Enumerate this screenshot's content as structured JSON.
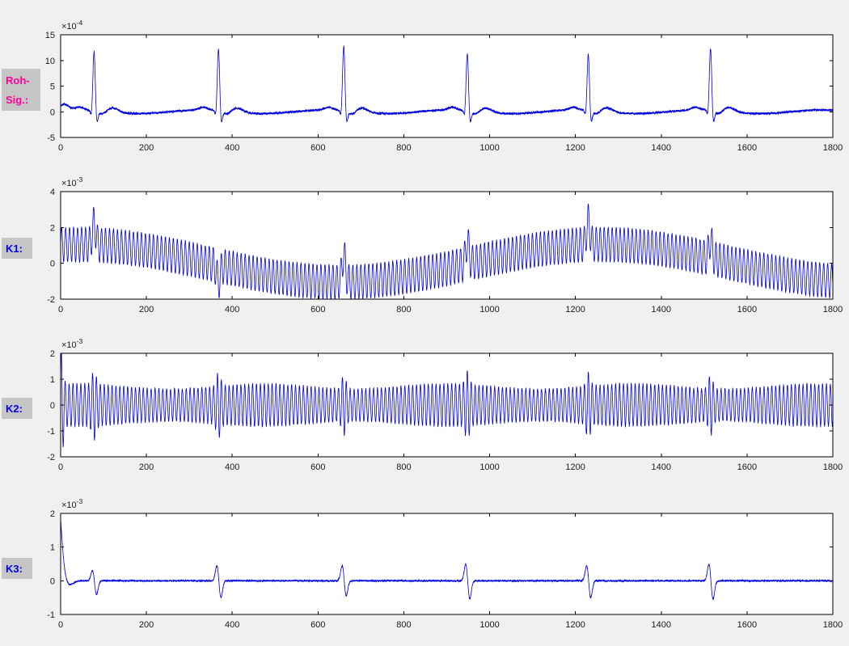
{
  "figure": {
    "bg_color": "#f0f0f0",
    "plot_bg": "#ffffff",
    "axis_color": "#000000",
    "tick_label_color": "#1a1a1a",
    "line_color": "#0000dd",
    "label_box_bg": "#c6c6c6"
  },
  "chart_data": [
    {
      "type": "line",
      "id": "raw-signal",
      "side_label": {
        "lines": [
          "Roh-",
          "Sig.:"
        ],
        "color": "#ff0099"
      },
      "unit_exponent": {
        "base": "×10",
        "power": "-4"
      },
      "xlim": [
        0,
        1800
      ],
      "xticks": [
        0,
        200,
        400,
        600,
        800,
        1000,
        1200,
        1400,
        1600,
        1800
      ],
      "ylim": [
        -5,
        15
      ],
      "yticks": [
        -5,
        0,
        5,
        10,
        15
      ],
      "line_color": "#0000dd",
      "description": "Raw ECG signal (units ×10⁻⁴): noisy baseline near 0 with six sharp R-peaks of height ≈11–13 and S-dips to ≈ −2.5",
      "signal": {
        "kind": "ecg",
        "seed": 7,
        "samples": 7200,
        "noise": 0.22,
        "beats": [
          78,
          368,
          660,
          948,
          1230,
          1515
        ],
        "r_amps": [
          11.8,
          12.2,
          12.8,
          11.4,
          11.2,
          12.3
        ],
        "q_amp": -1.2,
        "s_amp": -2.5,
        "p_amp": 0.55,
        "t_amp": 0.85,
        "dip_amp": -0.7,
        "base_amp": 0.35,
        "base_period": 290,
        "init_amp": 1.2
      }
    },
    {
      "type": "line",
      "id": "k1",
      "side_label": {
        "lines": [
          "K1:"
        ],
        "color": "#0000ee"
      },
      "unit_exponent": {
        "base": "×10",
        "power": "-3"
      },
      "xlim": [
        0,
        1800
      ],
      "xticks": [
        0,
        200,
        400,
        600,
        800,
        1000,
        1200,
        1400,
        1600,
        1800
      ],
      "ylim": [
        -2,
        4
      ],
      "yticks": [
        -2,
        0,
        2,
        4
      ],
      "line_color": "#0000dd",
      "description": "Component K1 (units ×10⁻³): dense high-frequency carrier ≈±0.95 riding on a slow sinusoidal drift (max ≈+1 near x≈1250, min ≈−1 near x≈650) with spikes up to ≈3 at the R-peak positions",
      "signal": {
        "kind": "carrier_drift",
        "seed": 11,
        "samples": 7200,
        "noise": 0.05,
        "carrier_amp": 0.95,
        "carrier_period": 9.3,
        "drift_amp": 1.05,
        "drift_period": 1220,
        "drift_phase": 40,
        "beats": [
          78,
          368,
          660,
          948,
          1230,
          1515
        ],
        "spike_amps": [
          1.2,
          -0.9,
          1.5,
          1.2,
          1.3,
          1.0
        ],
        "spike_width": 4
      }
    },
    {
      "type": "line",
      "id": "k2",
      "side_label": {
        "lines": [
          "K2:"
        ],
        "color": "#0000ee"
      },
      "unit_exponent": {
        "base": "×10",
        "power": "-3"
      },
      "xlim": [
        0,
        1800
      ],
      "xticks": [
        0,
        200,
        400,
        600,
        800,
        1000,
        1200,
        1400,
        1600,
        1800
      ],
      "ylim": [
        -2,
        2
      ],
      "yticks": [
        -2,
        -1,
        0,
        1,
        2
      ],
      "line_color": "#0000dd",
      "description": "Component K2 (units ×10⁻³): stationary high-frequency oscillation ≈±0.8 around 0, initial transient to ≈2 at x≈0 and amplitude bursts to ≈±1.3 at the R-peak positions",
      "signal": {
        "kind": "carrier_bursts",
        "seed": 13,
        "samples": 7200,
        "noise": 0.04,
        "carrier_amp": 0.72,
        "carrier_period": 9.1,
        "mod_amp": 0.1,
        "mod_period": 430,
        "beats": [
          78,
          368,
          660,
          948,
          1230,
          1515
        ],
        "burst_boost": 0.55,
        "burst_width": 5,
        "init_boost": 1.3,
        "init_width": 4
      }
    },
    {
      "type": "line",
      "id": "k3",
      "side_label": {
        "lines": [
          "K3:"
        ],
        "color": "#0000ee"
      },
      "unit_exponent": {
        "base": "×10",
        "power": "-3"
      },
      "xlim": [
        0,
        1800
      ],
      "xticks": [
        0,
        200,
        400,
        600,
        800,
        1000,
        1200,
        1400,
        1600,
        1800
      ],
      "ylim": [
        -1,
        2
      ],
      "yticks": [
        -1,
        0,
        1,
        2
      ],
      "line_color": "#0000dd",
      "description": "Component K3 (units ×10⁻³): near-zero residual with initial transient ≈1.85 at x=0 and small biphasic spikes (≈+0.5/−0.55) at the R-peak positions",
      "signal": {
        "kind": "residual",
        "seed": 17,
        "samples": 7200,
        "noise": 0.025,
        "trans_amp": 1.85,
        "trans_decay": 9,
        "trans_period": 60,
        "beats": [
          78,
          368,
          660,
          948,
          1230,
          1515
        ],
        "spike_up": [
          0.35,
          0.5,
          0.5,
          0.55,
          0.5,
          0.55
        ],
        "spike_down": [
          -0.45,
          -0.55,
          -0.5,
          -0.6,
          -0.55,
          -0.6
        ],
        "spike_width": 4
      }
    }
  ]
}
